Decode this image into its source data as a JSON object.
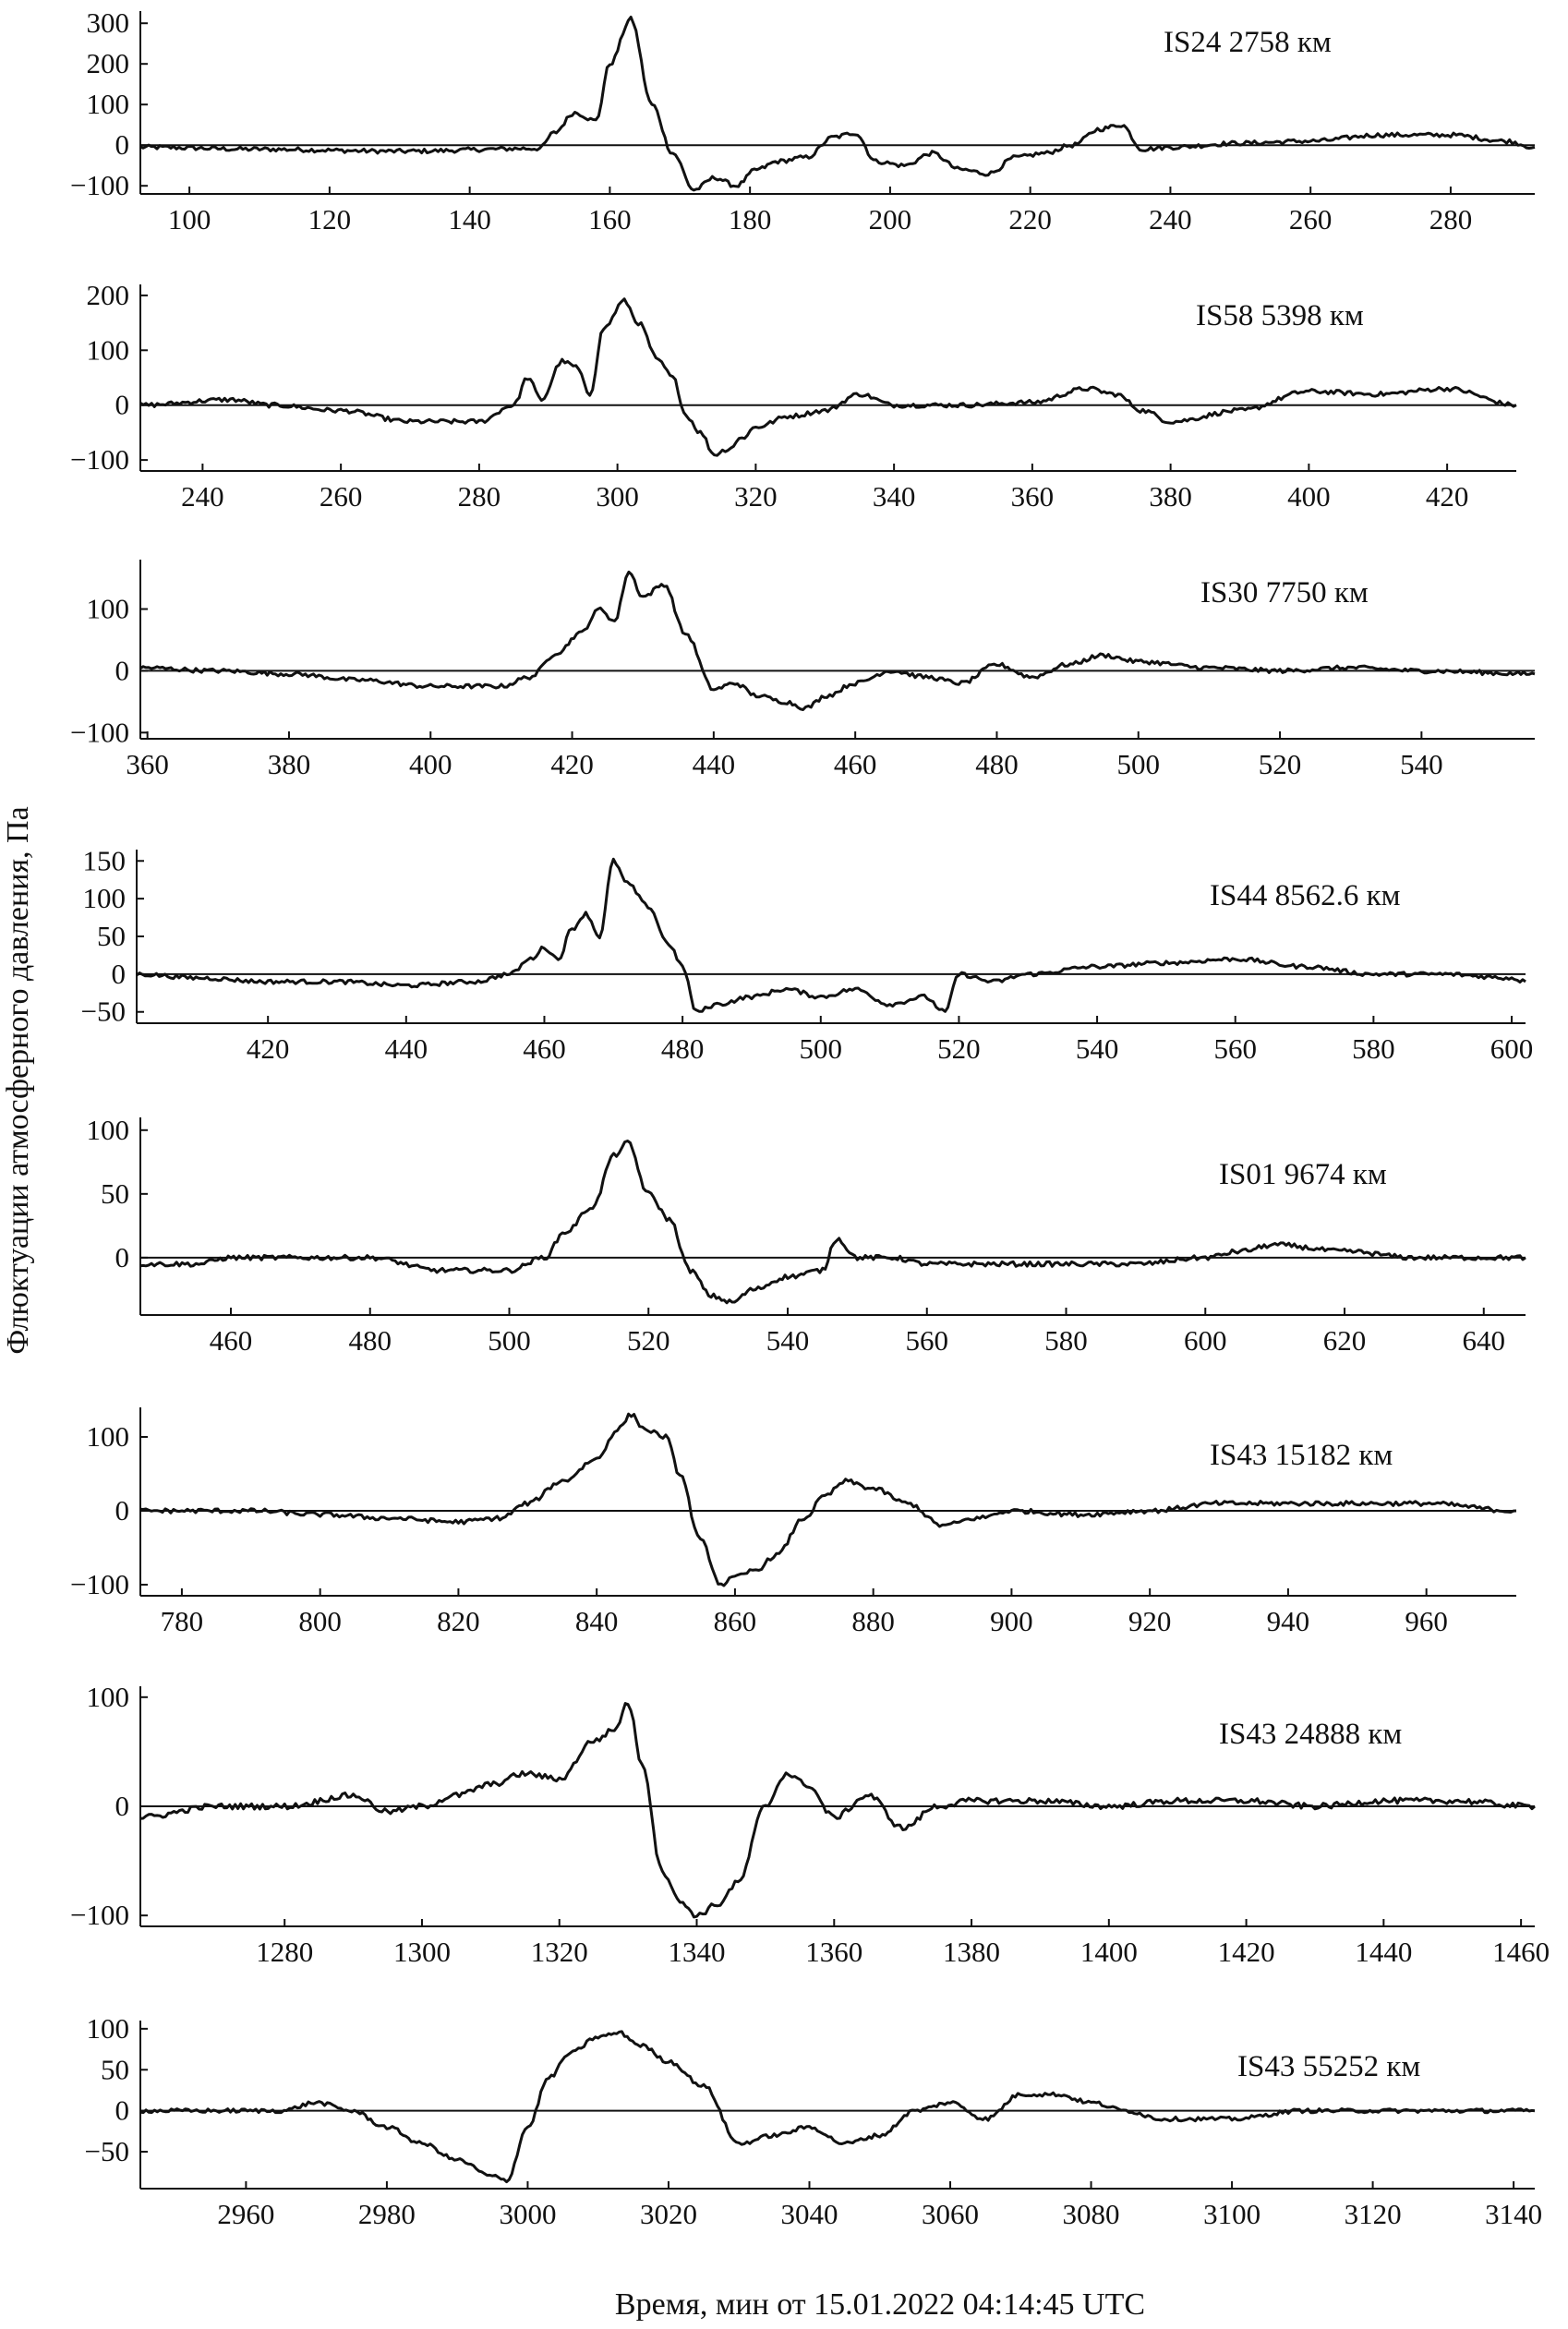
{
  "figure": {
    "ylabel": "Флюктуации атмосферного давления, Па",
    "xlabel": "Время, мин от  15.01.2022 04:14:45 UTC"
  },
  "chart_data": [
    {
      "type": "line",
      "label": "IS24 2758 км",
      "xlim": [
        93,
        292
      ],
      "ylim": [
        -120,
        330
      ],
      "xticks": [
        100,
        120,
        140,
        160,
        180,
        200,
        220,
        240,
        260,
        280
      ],
      "yticks": [
        -100,
        0,
        100,
        200,
        300
      ],
      "series": [
        {
          "x": [
            93,
            110,
            130,
            150,
            152,
            155,
            158,
            160,
            163,
            166,
            169,
            172,
            175,
            178,
            181,
            184,
            188,
            192,
            195,
            198,
            202,
            206,
            210,
            214,
            218,
            222,
            226,
            230,
            233,
            236,
            240,
            250,
            260,
            270,
            280,
            288,
            292
          ],
          "y": [
            -5,
            -10,
            -15,
            -8,
            30,
            80,
            60,
            200,
            310,
            100,
            -20,
            -110,
            -80,
            -100,
            -60,
            -40,
            -30,
            20,
            30,
            -40,
            -50,
            -20,
            -60,
            -70,
            -30,
            -20,
            0,
            40,
            50,
            -10,
            -5,
            5,
            10,
            25,
            25,
            10,
            -5
          ]
        }
      ]
    },
    {
      "type": "line",
      "label": "IS58 5398 км",
      "xlim": [
        231,
        430
      ],
      "ylim": [
        -120,
        220
      ],
      "xticks": [
        240,
        260,
        280,
        300,
        320,
        340,
        360,
        380,
        400,
        420
      ],
      "yticks": [
        -100,
        0,
        100,
        200
      ],
      "series": [
        {
          "x": [
            231,
            244,
            250,
            260,
            270,
            280,
            285,
            287,
            289,
            292,
            294,
            296,
            298,
            301,
            303,
            306,
            308,
            310,
            312,
            314,
            316,
            318,
            320,
            325,
            330,
            335,
            340,
            350,
            360,
            368,
            372,
            376,
            380,
            390,
            400,
            410,
            420,
            430
          ],
          "y": [
            0,
            10,
            0,
            -10,
            -30,
            -30,
            0,
            50,
            10,
            80,
            70,
            20,
            140,
            190,
            150,
            80,
            50,
            -20,
            -50,
            -90,
            -80,
            -60,
            -40,
            -20,
            -10,
            20,
            0,
            0,
            5,
            30,
            20,
            -10,
            -30,
            -10,
            25,
            20,
            30,
            0
          ]
        }
      ]
    },
    {
      "type": "line",
      "label": "IS30 7750 км",
      "xlim": [
        359,
        556
      ],
      "ylim": [
        -110,
        180
      ],
      "xticks": [
        360,
        380,
        400,
        420,
        440,
        460,
        480,
        500,
        520,
        540
      ],
      "yticks": [
        -100,
        0,
        100
      ],
      "series": [
        {
          "x": [
            359,
            370,
            380,
            390,
            400,
            410,
            414,
            418,
            421,
            424,
            426,
            428,
            430,
            433,
            436,
            440,
            443,
            446,
            450,
            453,
            456,
            460,
            465,
            470,
            475,
            480,
            485,
            490,
            495,
            500,
            510,
            520,
            530,
            540,
            556
          ],
          "y": [
            5,
            0,
            -5,
            -15,
            -25,
            -25,
            -10,
            30,
            60,
            100,
            80,
            160,
            120,
            140,
            60,
            -30,
            -20,
            -40,
            -50,
            -60,
            -40,
            -20,
            0,
            -10,
            -20,
            10,
            -10,
            10,
            25,
            15,
            5,
            0,
            5,
            0,
            -5
          ]
        }
      ]
    },
    {
      "type": "line",
      "label": "IS44 8562.6 км",
      "xlim": [
        401,
        602
      ],
      "ylim": [
        -65,
        165
      ],
      "xticks": [
        420,
        440,
        460,
        480,
        500,
        520,
        540,
        560,
        580,
        600
      ],
      "yticks": [
        -50,
        0,
        50,
        100,
        150
      ],
      "series": [
        {
          "x": [
            401,
            410,
            420,
            430,
            440,
            450,
            455,
            458,
            460,
            462,
            464,
            466,
            468,
            470,
            472,
            475,
            478,
            480,
            482,
            485,
            490,
            495,
            500,
            505,
            510,
            515,
            518,
            520,
            525,
            530,
            540,
            550,
            560,
            570,
            580,
            590,
            600,
            602
          ],
          "y": [
            0,
            -5,
            -10,
            -10,
            -15,
            -10,
            0,
            20,
            35,
            20,
            60,
            80,
            50,
            150,
            120,
            90,
            40,
            10,
            -50,
            -40,
            -30,
            -20,
            -30,
            -20,
            -40,
            -30,
            -50,
            0,
            -10,
            0,
            10,
            15,
            20,
            10,
            0,
            0,
            -5,
            -10
          ]
        }
      ]
    },
    {
      "type": "line",
      "label": "IS01 9674 км",
      "xlim": [
        447,
        646
      ],
      "ylim": [
        -45,
        110
      ],
      "xticks": [
        460,
        480,
        500,
        520,
        540,
        560,
        580,
        600,
        620,
        640
      ],
      "yticks": [
        0,
        50,
        100
      ],
      "series": [
        {
          "x": [
            447,
            455,
            460,
            470,
            480,
            490,
            500,
            505,
            508,
            512,
            515,
            517,
            520,
            523,
            526,
            529,
            532,
            535,
            540,
            545,
            547,
            550,
            555,
            560,
            570,
            580,
            590,
            600,
            605,
            610,
            620,
            630,
            640,
            646
          ],
          "y": [
            -5,
            -5,
            0,
            0,
            0,
            -10,
            -10,
            0,
            20,
            40,
            80,
            90,
            50,
            30,
            -10,
            -30,
            -35,
            -25,
            -15,
            -10,
            15,
            0,
            0,
            -5,
            -5,
            -5,
            -5,
            0,
            5,
            10,
            5,
            0,
            0,
            0
          ]
        }
      ]
    },
    {
      "type": "line",
      "label": "IS43 15182 км",
      "xlim": [
        774,
        973
      ],
      "ylim": [
        -115,
        140
      ],
      "xticks": [
        780,
        800,
        820,
        840,
        860,
        880,
        900,
        920,
        940,
        960
      ],
      "yticks": [
        -100,
        0,
        100
      ],
      "series": [
        {
          "x": [
            774,
            790,
            800,
            810,
            820,
            826,
            830,
            835,
            840,
            843,
            845,
            847,
            850,
            852,
            855,
            858,
            860,
            863,
            866,
            870,
            873,
            876,
            880,
            885,
            890,
            895,
            900,
            910,
            920,
            930,
            940,
            950,
            960,
            973
          ],
          "y": [
            0,
            0,
            -5,
            -10,
            -15,
            -10,
            10,
            40,
            70,
            110,
            130,
            110,
            100,
            50,
            -40,
            -100,
            -90,
            -80,
            -60,
            -10,
            20,
            40,
            30,
            10,
            -20,
            -10,
            0,
            -5,
            0,
            10,
            10,
            10,
            10,
            0
          ]
        }
      ]
    },
    {
      "type": "line",
      "label": "IS43 24888 км",
      "xlim": [
        1259,
        1462
      ],
      "ylim": [
        -110,
        110
      ],
      "xticks": [
        1280,
        1300,
        1320,
        1340,
        1360,
        1380,
        1400,
        1420,
        1440,
        1460
      ],
      "yticks": [
        -100,
        0,
        100
      ],
      "series": [
        {
          "x": [
            1259,
            1270,
            1280,
            1290,
            1295,
            1300,
            1305,
            1310,
            1315,
            1320,
            1325,
            1328,
            1330,
            1332,
            1335,
            1338,
            1340,
            1343,
            1346,
            1350,
            1353,
            1356,
            1360,
            1365,
            1370,
            1375,
            1380,
            1390,
            1400,
            1410,
            1420,
            1430,
            1440,
            1450,
            1462
          ],
          "y": [
            -10,
            0,
            0,
            10,
            -5,
            0,
            10,
            20,
            30,
            25,
            60,
            70,
            95,
            40,
            -60,
            -90,
            -100,
            -90,
            -70,
            0,
            30,
            20,
            -10,
            10,
            -20,
            0,
            5,
            5,
            0,
            5,
            5,
            0,
            5,
            5,
            0
          ]
        }
      ]
    },
    {
      "type": "line",
      "label": "IS43 55252 км",
      "xlim": [
        2945,
        3143
      ],
      "ylim": [
        -95,
        110
      ],
      "xticks": [
        2960,
        2980,
        3000,
        3020,
        3040,
        3060,
        3080,
        3100,
        3120,
        3140
      ],
      "yticks": [
        -50,
        0,
        50,
        100
      ],
      "series": [
        {
          "x": [
            2945,
            2955,
            2965,
            2970,
            2975,
            2980,
            2985,
            2990,
            2995,
            2997,
            3000,
            3003,
            3006,
            3010,
            3013,
            3016,
            3020,
            3025,
            3030,
            3035,
            3040,
            3045,
            3050,
            3055,
            3060,
            3065,
            3070,
            3075,
            3080,
            3085,
            3090,
            3100,
            3110,
            3120,
            3130,
            3143
          ],
          "y": [
            0,
            0,
            0,
            10,
            0,
            -20,
            -40,
            -60,
            -80,
            -85,
            -20,
            40,
            70,
            90,
            95,
            80,
            60,
            30,
            -40,
            -30,
            -20,
            -40,
            -30,
            0,
            10,
            -10,
            20,
            20,
            10,
            0,
            -10,
            -10,
            0,
            0,
            0,
            0
          ]
        }
      ]
    }
  ]
}
